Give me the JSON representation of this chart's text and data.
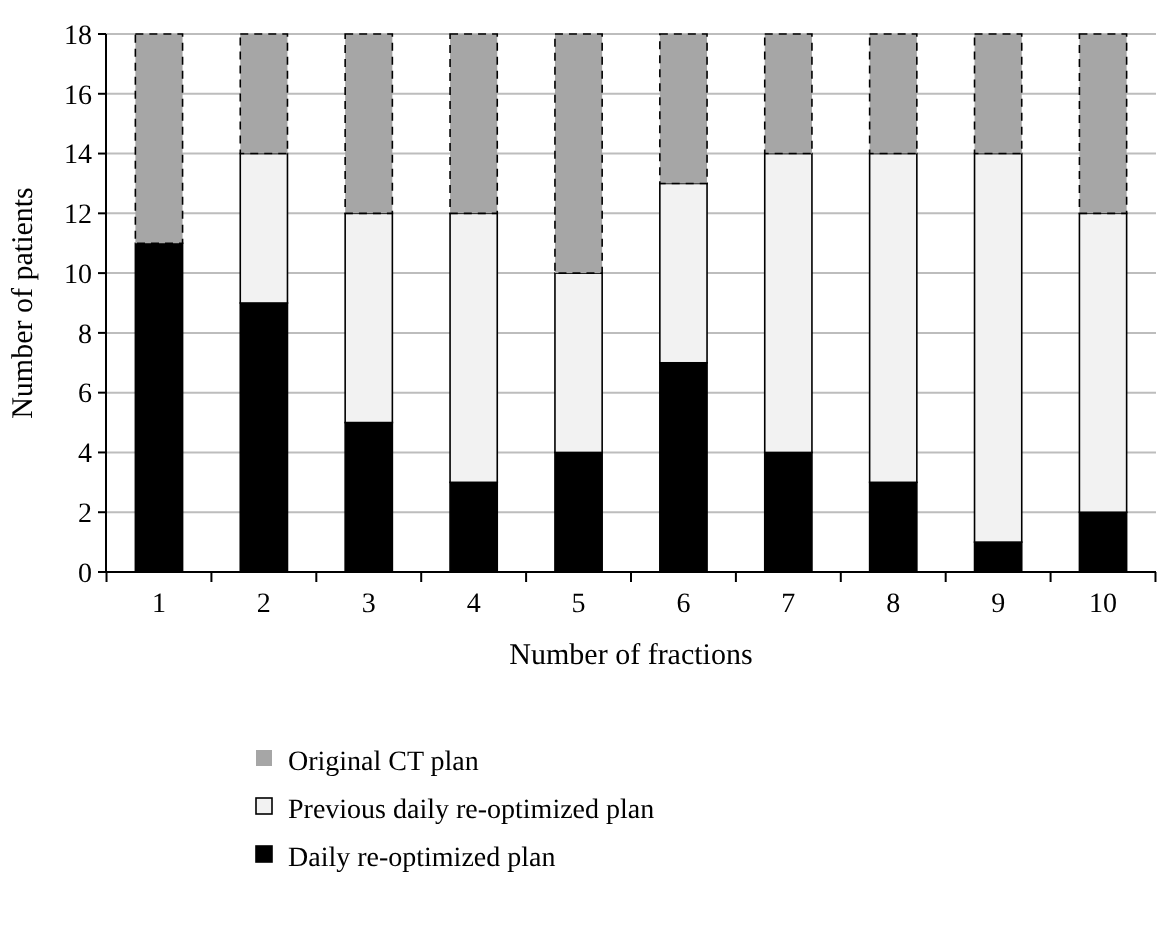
{
  "chart_data": {
    "type": "bar",
    "stacked": true,
    "xlabel": "Number of fractions",
    "ylabel": "Number of patients",
    "categories": [
      "1",
      "2",
      "3",
      "4",
      "5",
      "6",
      "7",
      "8",
      "9",
      "10"
    ],
    "series": [
      {
        "name": "Daily re-optimized plan",
        "color": "#000000",
        "values": [
          11,
          9,
          5,
          3,
          4,
          7,
          4,
          3,
          1,
          2
        ]
      },
      {
        "name": "Previous daily re-optimized plan",
        "color": "#f2f2f2",
        "values": [
          0,
          5,
          7,
          9,
          6,
          6,
          10,
          11,
          13,
          10
        ]
      },
      {
        "name": "Original CT plan",
        "color": "#a6a6a6",
        "line_style": "dashed",
        "values": [
          7,
          4,
          6,
          6,
          8,
          5,
          4,
          4,
          4,
          6
        ]
      }
    ],
    "ylim": [
      0,
      18
    ],
    "yticks": [
      0,
      2,
      4,
      6,
      8,
      10,
      12,
      14,
      16,
      18
    ],
    "grid": "y",
    "legend": "bottom"
  }
}
